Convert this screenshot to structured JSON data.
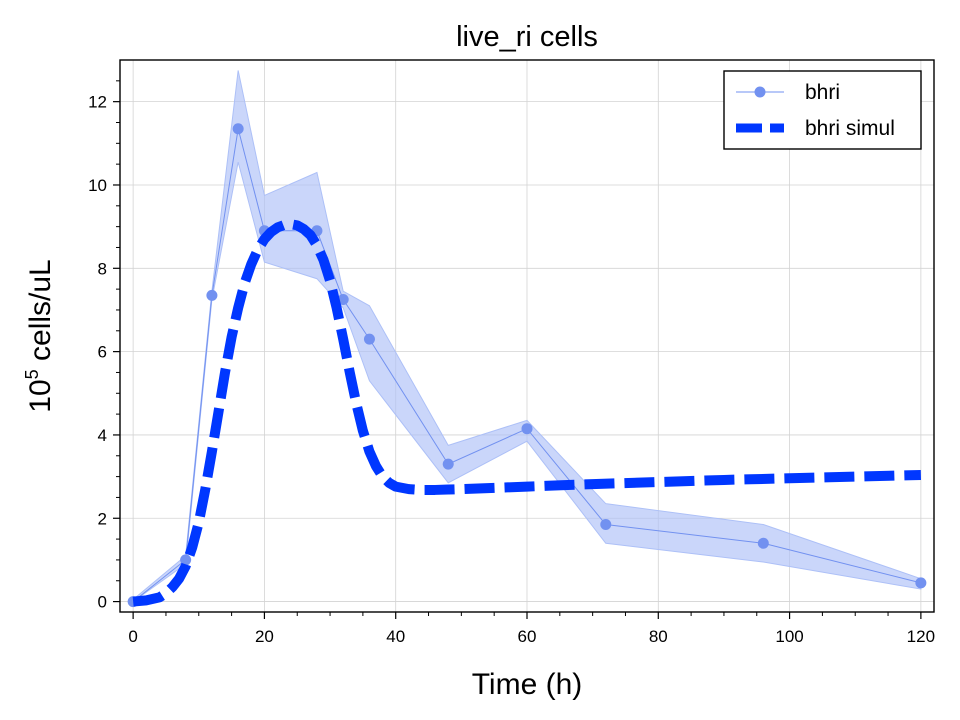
{
  "chart_data": {
    "type": "line",
    "title": "live_ri cells",
    "xlabel": "Time (h)",
    "ylabel": {
      "base": "10",
      "exponent": "5",
      "unit": " cells/uL"
    },
    "xlim": [
      -2,
      122
    ],
    "ylim": [
      -0.25,
      13
    ],
    "xticks": [
      0,
      20,
      40,
      60,
      80,
      100,
      120
    ],
    "yticks": [
      0,
      2,
      4,
      6,
      8,
      10,
      12
    ],
    "grid": true,
    "legend_position": "top-right",
    "colors": {
      "observed": "#7291f0",
      "band": "#adc0f7",
      "simul": "#0037ff"
    },
    "series": [
      {
        "name": "bhri",
        "style": "line-with-markers",
        "x": [
          0,
          8,
          12,
          16,
          20,
          28,
          32,
          36,
          48,
          60,
          72,
          96,
          120
        ],
        "y": [
          0.0,
          1.0,
          7.35,
          11.35,
          8.9,
          8.9,
          7.25,
          6.3,
          3.3,
          4.15,
          1.85,
          1.4,
          0.45
        ],
        "y_upper": [
          0.05,
          1.1,
          7.45,
          12.75,
          9.75,
          10.3,
          7.45,
          7.1,
          3.75,
          4.35,
          2.35,
          1.85,
          0.55
        ],
        "y_lower": [
          0.0,
          0.9,
          7.25,
          10.55,
          8.15,
          7.75,
          7.05,
          5.3,
          2.85,
          3.85,
          1.4,
          0.95,
          0.3
        ]
      },
      {
        "name": "bhri simul",
        "style": "thick-dashed",
        "x": [
          0,
          2,
          4,
          5,
          6,
          7,
          8,
          9,
          10,
          11,
          12,
          13,
          14,
          15,
          16,
          17,
          18,
          19,
          20,
          21,
          22,
          23,
          24,
          25,
          26,
          27,
          28,
          29,
          30,
          31,
          32,
          33,
          34,
          35,
          36,
          37,
          38,
          39,
          40,
          42,
          44,
          46,
          48,
          50,
          60,
          70,
          80,
          90,
          100,
          110,
          120
        ],
        "y": [
          0.0,
          0.03,
          0.1,
          0.2,
          0.35,
          0.55,
          0.85,
          1.3,
          1.9,
          2.7,
          3.6,
          4.55,
          5.5,
          6.35,
          7.05,
          7.65,
          8.1,
          8.45,
          8.7,
          8.87,
          8.98,
          9.04,
          9.06,
          9.03,
          8.94,
          8.8,
          8.55,
          8.2,
          7.7,
          7.05,
          6.3,
          5.5,
          4.75,
          4.1,
          3.6,
          3.25,
          3.0,
          2.85,
          2.76,
          2.7,
          2.68,
          2.68,
          2.69,
          2.7,
          2.76,
          2.82,
          2.87,
          2.92,
          2.96,
          3.0,
          3.04
        ]
      }
    ]
  }
}
